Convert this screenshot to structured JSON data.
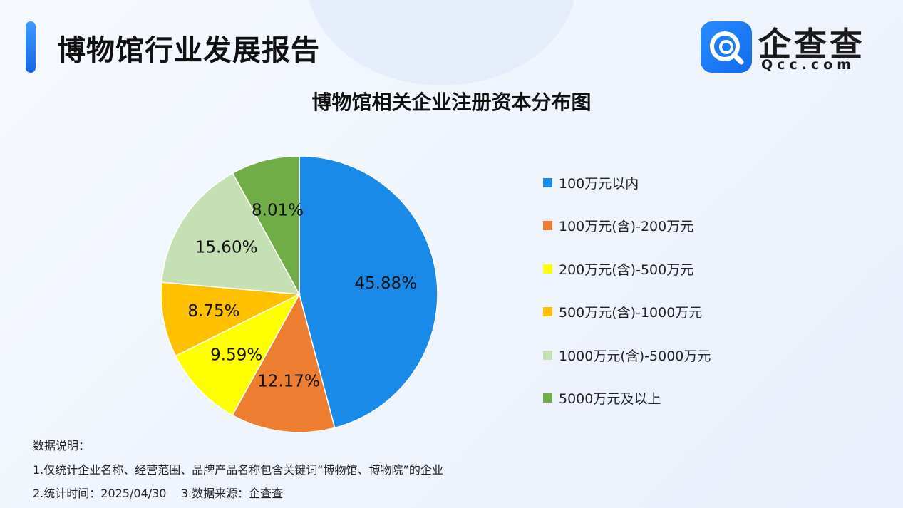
{
  "header": {
    "title": "博物馆行业发展报告",
    "logo_name": "企查查",
    "logo_domain": "Qcc.com"
  },
  "chart_data": {
    "type": "pie",
    "title": "博物馆相关企业注册资本分布图",
    "categories": [
      "100万元以内",
      "100万元(含)-200万元",
      "200万元(含)-500万元",
      "500万元(含)-1000万元",
      "1000万元(含)-5000万元",
      "5000万元及以上"
    ],
    "values": [
      45.88,
      12.17,
      9.59,
      8.75,
      15.6,
      8.01
    ],
    "labels": [
      "45.88%",
      "12.17%",
      "9.59%",
      "8.75%",
      "15.60%",
      "8.01%"
    ],
    "colors": [
      "#1a8ae8",
      "#ed7d31",
      "#ffff00",
      "#ffc000",
      "#c5e0b4",
      "#70ad47"
    ],
    "legend": "right"
  },
  "notes": {
    "heading": "数据说明：",
    "line1": "1.仅统计企业名称、经营范围、品牌产品名称包含关键词“博物馆、博物院”的企业",
    "line2": "2.统计时间：2025/04/30    3.数据来源：企查查"
  }
}
